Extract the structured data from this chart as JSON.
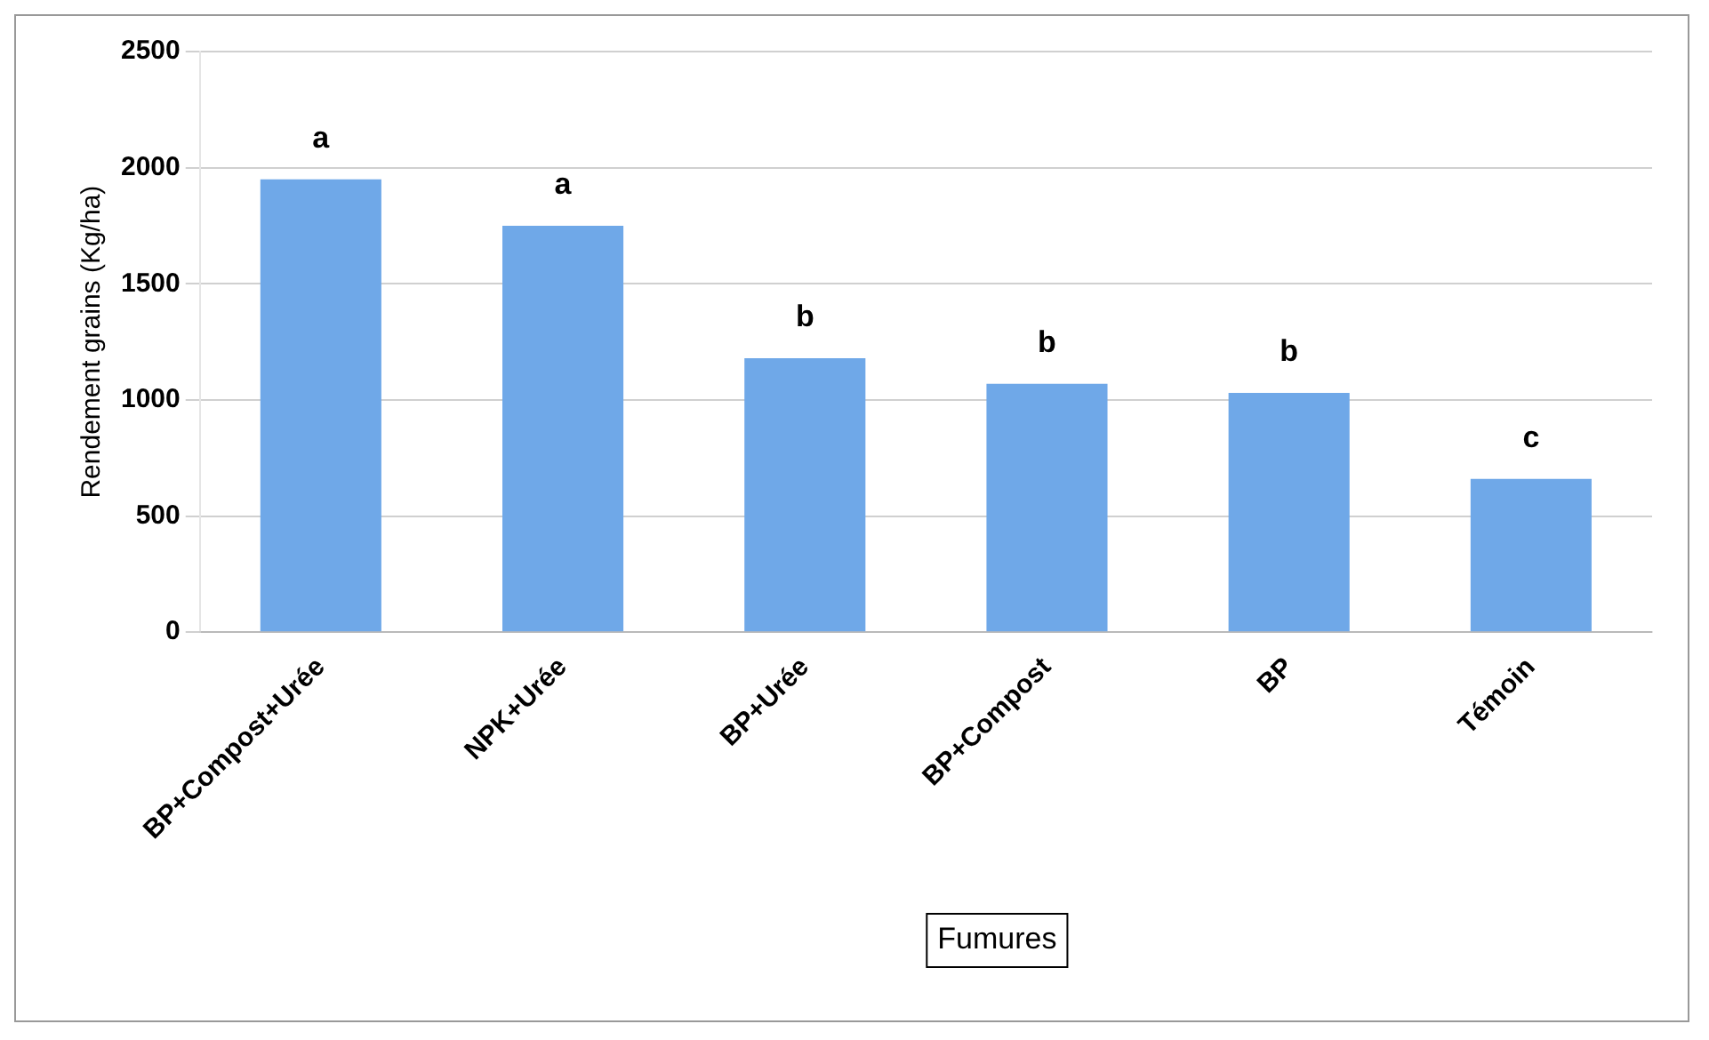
{
  "chart_data": {
    "type": "bar",
    "ylabel": "Rendement grains (Kg/ha)",
    "xlabel": "Fumures",
    "categories": [
      "BP+Compost+Urée",
      "NPK+Urée",
      "BP+Urée",
      "BP+Compost",
      "BP",
      "Témoin"
    ],
    "values": [
      1950,
      1750,
      1180,
      1070,
      1030,
      660
    ],
    "color": "#6fa8e8",
    "ylim": [
      0,
      2500
    ],
    "yticks": [
      0,
      500,
      1000,
      1500,
      2000,
      2500
    ],
    "grid": "y",
    "legend": false,
    "annotations": [
      {
        "text": "a",
        "x": "BP+Compost+Urée",
        "y": 1950
      },
      {
        "text": "a",
        "x": "NPK+Urée",
        "y": 1750
      },
      {
        "text": "b",
        "x": "BP+Urée",
        "y": 1180
      },
      {
        "text": "b",
        "x": "BP+Compost",
        "y": 1070
      },
      {
        "text": "b",
        "x": "BP",
        "y": 1030
      },
      {
        "text": "c",
        "x": "Témoin",
        "y": 660
      }
    ]
  }
}
